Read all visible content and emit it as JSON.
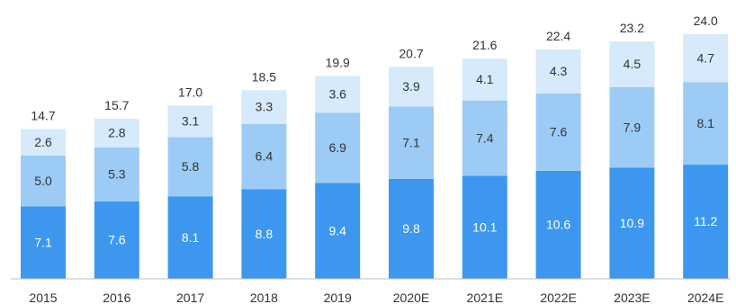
{
  "chart_data": {
    "type": "bar",
    "stacked": true,
    "categories": [
      "2015",
      "2016",
      "2017",
      "2018",
      "2019",
      "2020E",
      "2021E",
      "2022E",
      "2023E",
      "2024E"
    ],
    "series": [
      {
        "values": [
          7.1,
          7.6,
          8.1,
          8.8,
          9.4,
          9.8,
          10.1,
          10.6,
          10.9,
          11.2
        ],
        "color": "#3d97ef",
        "label_color": "#ffffff"
      },
      {
        "values": [
          5.0,
          5.3,
          5.8,
          6.4,
          6.9,
          7.1,
          7.4,
          7.6,
          7.9,
          8.1
        ],
        "color": "#9ccbf5",
        "label_color": "#333333"
      },
      {
        "values": [
          2.6,
          2.8,
          3.1,
          3.3,
          3.6,
          3.9,
          4.1,
          4.3,
          4.5,
          4.7
        ],
        "color": "#d6eafb",
        "label_color": "#333333"
      }
    ],
    "totals": [
      "14.7",
      "15.7",
      "17.0",
      "18.5",
      "19.9",
      "20.7",
      "21.6",
      "22.4",
      "23.2",
      "24.0"
    ],
    "ylim": [
      0,
      24.0
    ],
    "grid": false,
    "legend": "none",
    "baseline_color": "#bfbfbf",
    "title": "",
    "xlabel": "",
    "ylabel": ""
  }
}
